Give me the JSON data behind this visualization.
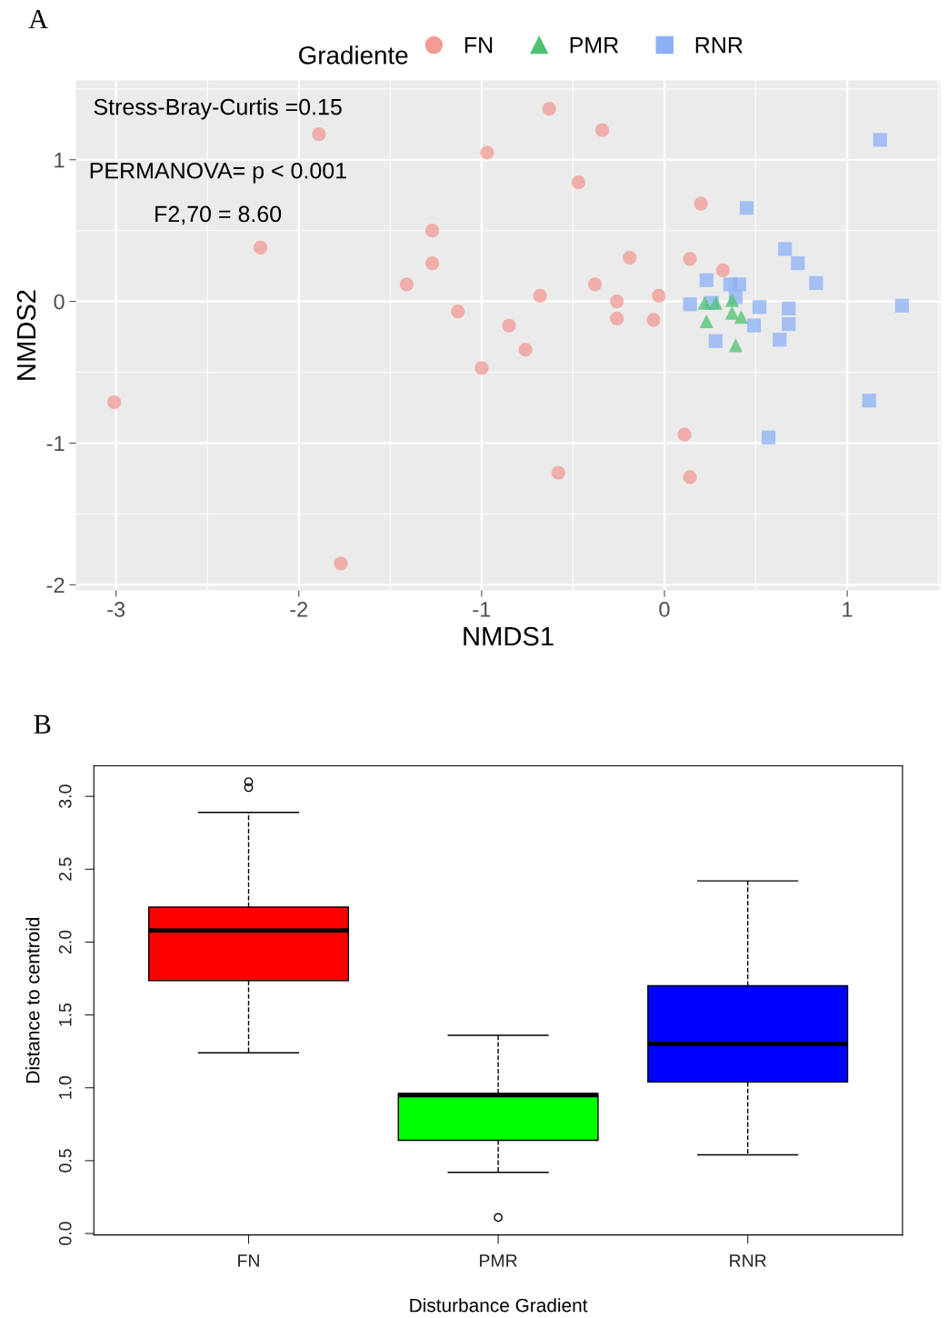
{
  "chart_data": [
    {
      "type": "scatter",
      "xlabel": "NMDS1",
      "ylabel": "NMDS2",
      "legend_title": "Gradiente",
      "legend": "top",
      "grid": true,
      "xlim": [
        -3.22,
        1.51
      ],
      "ylim": [
        -2.04,
        1.56
      ],
      "xticks": [
        -3,
        -2,
        -1,
        0,
        1
      ],
      "yticks": [
        -2,
        -1,
        0,
        1
      ],
      "annotations": [
        "A",
        "Stress-Bray-Curtis =0.15",
        "PERMANOVA= p < 0.001",
        "F2,70 = 8.60"
      ],
      "series": [
        {
          "name": "FN",
          "color": "#f29a94",
          "marker": "circle",
          "x": [
            -1.89,
            -0.63,
            -0.34,
            -0.97,
            -0.47,
            -2.21,
            -1.27,
            -1.27,
            -1.41,
            -1.13,
            -0.68,
            -0.38,
            -0.26,
            -0.26,
            -0.03,
            -0.06,
            -0.19,
            -0.85,
            -0.76,
            -1.0,
            -3.01,
            -0.58,
            -1.77,
            0.2,
            0.14,
            0.32,
            0.11,
            0.14
          ],
          "values": [
            1.18,
            1.36,
            1.21,
            1.05,
            0.84,
            0.38,
            0.5,
            0.27,
            0.12,
            -0.07,
            0.04,
            0.12,
            0.0,
            -0.12,
            0.04,
            -0.13,
            0.31,
            -0.17,
            -0.34,
            -0.47,
            -0.71,
            -1.21,
            -1.85,
            0.69,
            0.3,
            0.22,
            -0.94,
            -1.24
          ]
        },
        {
          "name": "PMR",
          "color": "#4dc270",
          "marker": "triangle",
          "x": [
            0.22,
            0.28,
            0.37,
            0.23,
            0.37,
            0.42,
            0.39
          ],
          "values": [
            -0.01,
            -0.01,
            0.01,
            -0.14,
            -0.08,
            -0.11,
            -0.31
          ]
        },
        {
          "name": "RNR",
          "color": "#8bb0f5",
          "marker": "square",
          "x": [
            1.18,
            0.45,
            0.66,
            0.73,
            0.83,
            1.3,
            1.12,
            0.57,
            0.23,
            0.36,
            0.41,
            0.14,
            0.26,
            0.52,
            0.68,
            0.68,
            0.49,
            0.63,
            0.28,
            0.39
          ],
          "values": [
            1.14,
            0.66,
            0.37,
            0.27,
            0.13,
            -0.03,
            -0.7,
            -0.96,
            0.15,
            0.12,
            0.12,
            -0.02,
            -0.01,
            -0.04,
            -0.05,
            -0.16,
            -0.17,
            -0.27,
            -0.28,
            0.03
          ]
        }
      ]
    },
    {
      "type": "box",
      "xlabel": "Disturbance Gradient",
      "ylabel": "Distance to centroid",
      "grid": false,
      "categories": [
        "FN",
        "PMR",
        "RNR"
      ],
      "colors": [
        "#ff0000",
        "#00ff00",
        "#0000ff"
      ],
      "ylim": [
        -0.01,
        3.21
      ],
      "yticks": [
        {
          "value": 0,
          "label": "0.0"
        },
        {
          "value": 0.5,
          "label": "0.5"
        },
        {
          "value": 1,
          "label": "1.0"
        },
        {
          "value": 1.5,
          "label": "1.5"
        },
        {
          "value": 2,
          "label": "2.0"
        },
        {
          "value": 2.5,
          "label": "2.5"
        },
        {
          "value": 3,
          "label": "3.0"
        }
      ],
      "annotations": [
        "B"
      ],
      "boxes": [
        {
          "low": 1.24,
          "q1": 1.735,
          "median": 2.08,
          "q3": 2.24,
          "high": 2.89,
          "outliers": [
            3.06,
            3.1
          ]
        },
        {
          "low": 0.42,
          "q1": 0.64,
          "median": 0.95,
          "q3": 0.96,
          "high": 1.36,
          "outliers": [
            0.11
          ]
        },
        {
          "low": 0.54,
          "q1": 1.04,
          "median": 1.3,
          "q3": 1.7,
          "high": 2.42
        }
      ]
    }
  ]
}
